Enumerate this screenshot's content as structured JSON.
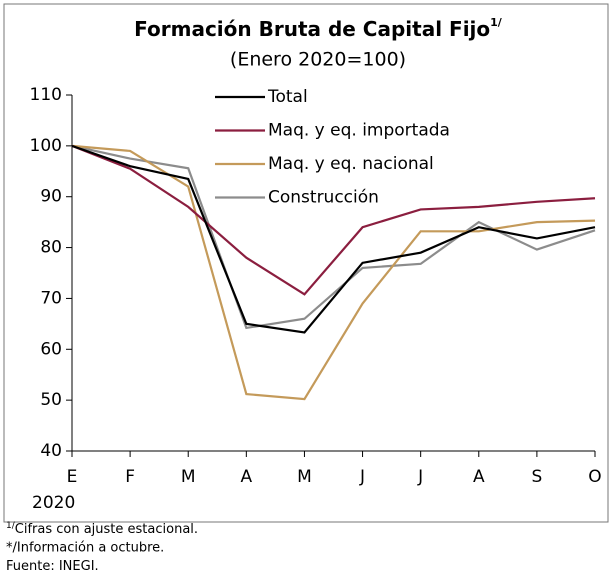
{
  "chart_data": {
    "type": "line",
    "title": "Formación Bruta de Capital Fijo",
    "title_superscript": "1/",
    "subtitle": "(Enero 2020=100)",
    "categories": [
      "E",
      "F",
      "M",
      "A",
      "M",
      "J",
      "J",
      "A",
      "S",
      "O"
    ],
    "x_year_label": "2020",
    "series": [
      {
        "name": "Total",
        "color": "#000000",
        "values": [
          100,
          96,
          93.5,
          65,
          63.3,
          77,
          79,
          84,
          81.8,
          84
        ]
      },
      {
        "name": "Maq. y eq. importada",
        "color": "#8b1e3f",
        "values": [
          100,
          95.5,
          88,
          78,
          70.8,
          84,
          87.5,
          88,
          89,
          89.7
        ]
      },
      {
        "name": "Maq. y eq. nacional",
        "color": "#c49a5a",
        "values": [
          100,
          99,
          92,
          51.2,
          50.2,
          69,
          83.2,
          83.2,
          85,
          85.3
        ]
      },
      {
        "name": "Construcción",
        "color": "#8c8c8c",
        "values": [
          100,
          97.5,
          95.6,
          64.2,
          66,
          76,
          76.8,
          85,
          79.6,
          83.4
        ]
      }
    ],
    "ylim": [
      40,
      110
    ],
    "yticks": [
      40,
      50,
      60,
      70,
      80,
      90,
      100,
      110
    ],
    "notes": [
      {
        "mark": "1/",
        "text": "Cifras con ajuste estacional."
      },
      {
        "mark": "*/",
        "text": "Información a octubre."
      },
      {
        "mark": "",
        "text": "Fuente: INEGI."
      }
    ]
  }
}
